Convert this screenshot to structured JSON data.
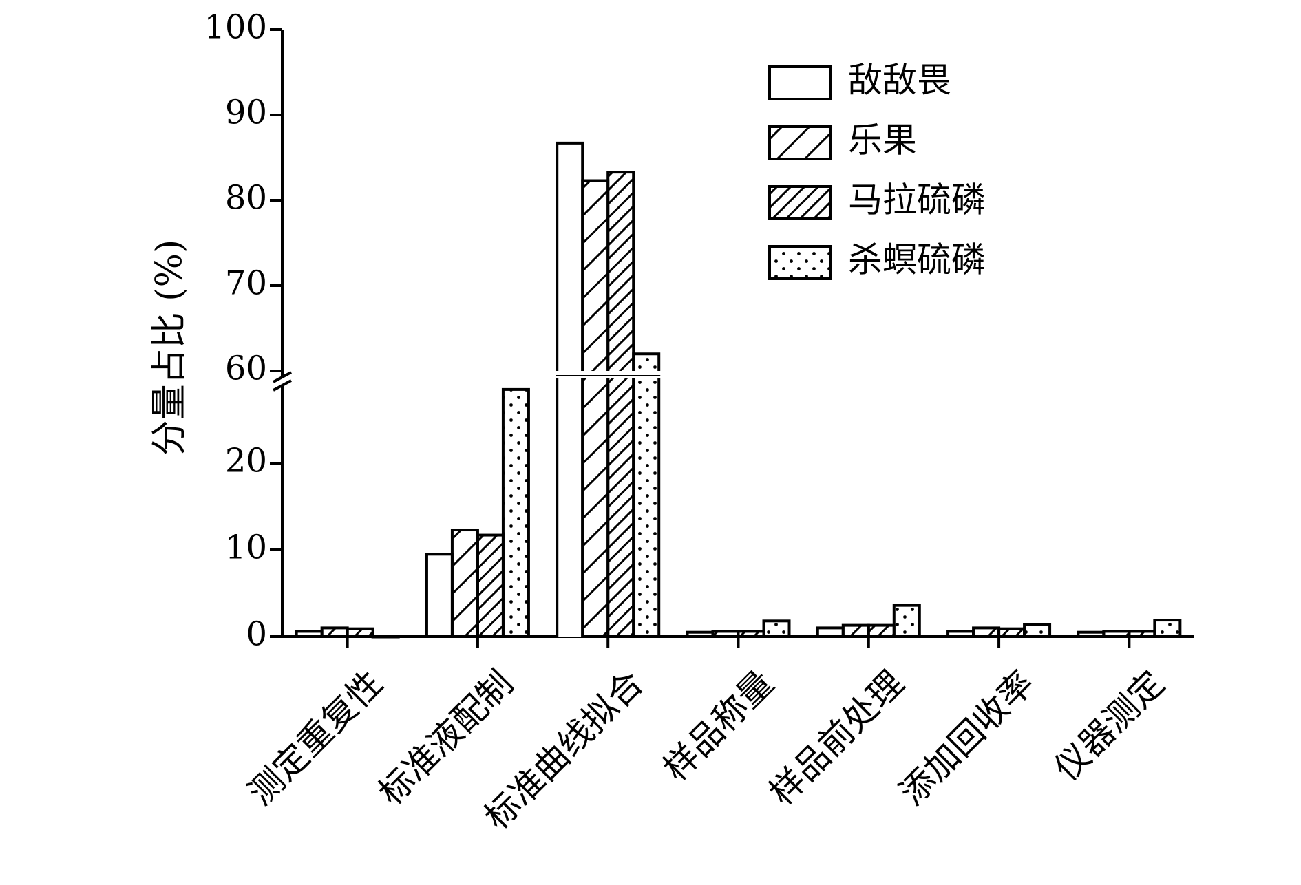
{
  "chart_data": {
    "type": "bar",
    "title": "",
    "xlabel": "",
    "ylabel": "分量占比 (%)",
    "axis_break": {
      "lower_max": 30,
      "upper_min": 60
    },
    "ylim": [
      0,
      100
    ],
    "yticks_lower": [
      0,
      10,
      20
    ],
    "yticks_upper": [
      60,
      70,
      80,
      90,
      100
    ],
    "ytick_labels": [
      "0",
      "10",
      "20",
      "60",
      "70",
      "80",
      "90",
      "100"
    ],
    "categories": [
      "测定重复性",
      "标准液配制",
      "标准曲线拟合",
      "样品称量",
      "样品前处理",
      "添加回收率",
      "仪器测定"
    ],
    "series": [
      {
        "name": "敌敌畏",
        "pattern": "none",
        "values": [
          0.6,
          9.5,
          86.7,
          0.5,
          1.0,
          0.6,
          0.5
        ]
      },
      {
        "name": "乐果",
        "pattern": "sparse-hatch",
        "values": [
          1.0,
          12.3,
          82.3,
          0.6,
          1.3,
          1.0,
          0.6
        ]
      },
      {
        "name": "马拉硫磷",
        "pattern": "dense-hatch",
        "values": [
          0.9,
          11.7,
          83.3,
          0.6,
          1.3,
          0.9,
          0.6
        ]
      },
      {
        "name": "杀螟硫磷",
        "pattern": "dots",
        "values": [
          0.0,
          28.5,
          62.0,
          1.8,
          3.6,
          1.4,
          1.9
        ]
      }
    ],
    "legend_position": "top-right",
    "grid": false
  }
}
